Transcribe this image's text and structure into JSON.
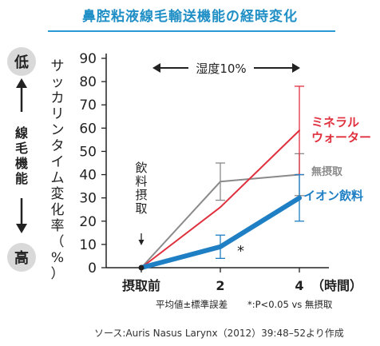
{
  "title": "鼻腔粘液線毛輸送機能の経時変化",
  "side_scale": {
    "top": "低",
    "middle": "線毛機能",
    "bottom": "高"
  },
  "condition_label": "湿度10%",
  "event_label": "飲料摂取",
  "significance_mark": "*",
  "footnote_left": "平均値±標準誤差",
  "footnote_right": "*:P<0.05 vs 無摂取",
  "source": "ソース:Auris Nasus Larynx（2012）39:48–52より作成",
  "colors": {
    "title": "#1f8fc6",
    "mineral": "#e0303e",
    "none": "#8a8a8a",
    "ion": "#1f7fc4",
    "circle": "#d9d9d9"
  },
  "chart_data": {
    "type": "line",
    "ylabel": "サッカリンタイム変化率（%）",
    "xlabel": "（時間）",
    "categories": [
      "摂取前",
      "2",
      "4"
    ],
    "ylim": [
      0,
      90
    ],
    "yticks": [
      "0",
      "10",
      "20",
      "30",
      "40",
      "50",
      "60",
      "70",
      "80",
      "90"
    ],
    "grid": false,
    "series": [
      {
        "name": "ミネラルウォーター",
        "values": [
          0,
          26,
          59
        ],
        "error": [
          0,
          0,
          19
        ],
        "color_key": "mineral"
      },
      {
        "name": "無摂取",
        "values": [
          0,
          37,
          40
        ],
        "error": [
          0,
          8,
          9
        ],
        "color_key": "none"
      },
      {
        "name": "イオン飲料",
        "values": [
          0,
          9,
          30
        ],
        "error": [
          0,
          5,
          10
        ],
        "color_key": "ion"
      }
    ],
    "series_labels": [
      [
        "ミネラル",
        "ウォーター"
      ],
      [
        "無摂取"
      ],
      [
        "イオン飲料"
      ]
    ]
  }
}
